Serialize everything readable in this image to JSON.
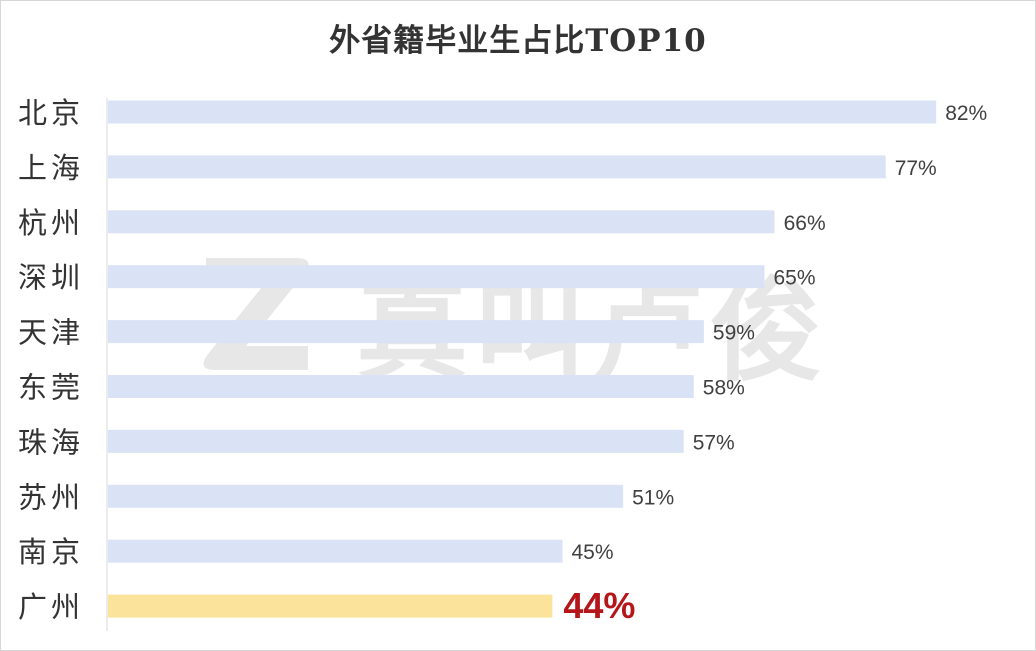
{
  "chart_data": {
    "type": "bar",
    "orientation": "horizontal",
    "title": "外省籍毕业生占比TOP10",
    "categories": [
      "北京",
      "上海",
      "杭州",
      "深圳",
      "天津",
      "东莞",
      "珠海",
      "苏州",
      "南京",
      "广州"
    ],
    "values": [
      82,
      77,
      66,
      65,
      59,
      58,
      57,
      51,
      45,
      44
    ],
    "data_labels": [
      "82%",
      "77%",
      "66%",
      "65%",
      "59%",
      "58%",
      "57%",
      "51%",
      "45%",
      "44%"
    ],
    "highlight_category": "广州",
    "xlim": [
      0,
      100
    ],
    "grid": false,
    "legend": "none",
    "colors": {
      "bar": "#dae3f5",
      "highlight_bar": "#fbe39b",
      "label": "#404040",
      "highlight_label": "#b4161a",
      "axis": "#d9d9d9"
    }
  },
  "watermark": {
    "text": "真叫卢俊"
  }
}
